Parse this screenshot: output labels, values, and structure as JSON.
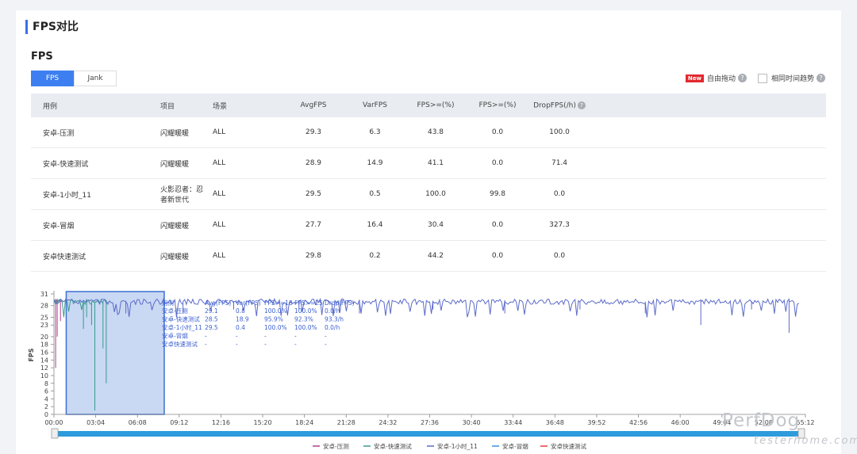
{
  "section_title": "FPS对比",
  "subtitle": "FPS",
  "tabs": [
    {
      "label": "FPS",
      "active": true
    },
    {
      "label": "Jank",
      "active": false
    }
  ],
  "options": {
    "new_badge": "New",
    "free_drag": "自由拖动",
    "same_time_trend": "相同时间趋势",
    "help_glyph": "?"
  },
  "table": {
    "columns": [
      "用例",
      "项目",
      "场景",
      "AvgFPS",
      "VarFPS",
      "FPS>=(%)",
      "FPS>=(%)",
      "DropFPS(/h)"
    ],
    "rows": [
      [
        "安卓-压测",
        "闪耀暖暖",
        "ALL",
        "29.3",
        "6.3",
        "43.8",
        "0.0",
        "100.0"
      ],
      [
        "安卓-快速测试",
        "闪耀暖暖",
        "ALL",
        "28.9",
        "14.9",
        "41.1",
        "0.0",
        "71.4"
      ],
      [
        "安卓-1小时_11",
        "火影忍者：忍者新世代",
        "ALL",
        "29.5",
        "0.5",
        "100.0",
        "99.8",
        "0.0"
      ],
      [
        "安卓-冒烟",
        "闪耀暖暖",
        "ALL",
        "27.7",
        "16.4",
        "30.4",
        "0.0",
        "327.3"
      ],
      [
        "安卓快速测试",
        "闪耀暖暖",
        "ALL",
        "29.8",
        "0.2",
        "44.2",
        "0.0",
        "0.0"
      ]
    ]
  },
  "chart_data": {
    "type": "line",
    "ylabel": "FPS",
    "y_ticks": [
      "0",
      "2",
      "4",
      "6",
      "8",
      "10",
      "12",
      "14",
      "16",
      "18",
      "20",
      "23",
      "25",
      "28",
      "31"
    ],
    "ylim": [
      0,
      31
    ],
    "x_ticks": [
      "00:00",
      "03:04",
      "06:08",
      "09:12",
      "12:16",
      "15:20",
      "18:24",
      "21:28",
      "24:32",
      "27:36",
      "30:40",
      "33:44",
      "36:48",
      "39:52",
      "42:56",
      "46:00",
      "49:04",
      "52:08",
      "55:12"
    ],
    "xlim_minutes": [
      0,
      55.2
    ],
    "grid": "horizontal",
    "selection_minutes": [
      0.9,
      8.1
    ],
    "legend_position": "bottom",
    "series": [
      {
        "name": "安卓-压测",
        "color": "#b0408e",
        "end_minutes": 0.6,
        "base": 29,
        "dips": [
          [
            0.1,
            12
          ],
          [
            0.3,
            20
          ],
          [
            0.45,
            24
          ]
        ]
      },
      {
        "name": "安卓-快速测试",
        "color": "#3a9a8f",
        "end_minutes": 4.0,
        "base": 29,
        "dips": [
          [
            2.2,
            22
          ],
          [
            2.4,
            25
          ],
          [
            2.8,
            23
          ],
          [
            3.0,
            1
          ],
          [
            3.6,
            17
          ],
          [
            3.9,
            8
          ]
        ]
      },
      {
        "name": "安卓-1小时_11",
        "color": "#5c6bc9",
        "end_minutes": 54.8,
        "base": 29,
        "dips": [
          [
            5.3,
            26
          ],
          [
            9.5,
            26
          ],
          [
            13.2,
            27
          ],
          [
            18.0,
            27
          ],
          [
            22.4,
            26
          ],
          [
            27.8,
            27
          ],
          [
            33.1,
            26
          ],
          [
            38.7,
            27
          ],
          [
            43.5,
            26
          ],
          [
            47.5,
            23
          ],
          [
            51.2,
            27
          ],
          [
            54.0,
            21
          ]
        ]
      },
      {
        "name": "安卓-冒烟",
        "color": "#3e8fe0",
        "end_minutes": 0,
        "base": 29,
        "dips": []
      },
      {
        "name": "安卓快速测试",
        "color": "#e23c3c",
        "end_minutes": 0,
        "base": 29,
        "dips": []
      }
    ],
    "tooltip": {
      "headers": [
        "用例",
        "Avg(FPS)",
        "Var(FPS)",
        "FPS>=18",
        "FPS>=25",
        "Drop(FPS)"
      ],
      "rows": [
        [
          "安卓-压测",
          "29.1",
          "0.8",
          "100.0%",
          "100.0%",
          "0.0/h"
        ],
        [
          "安卓-快速测试",
          "28.5",
          "18.9",
          "95.9%",
          "92.3%",
          "93.3/h"
        ],
        [
          "安卓-1小时_11",
          "29.5",
          "0.4",
          "100.0%",
          "100.0%",
          "0.0/h"
        ],
        [
          "安卓-冒烟",
          "-",
          "-",
          "-",
          "-",
          "-"
        ],
        [
          "安卓快速测试",
          "-",
          "-",
          "-",
          "-",
          "-"
        ]
      ]
    }
  },
  "watermark": {
    "brand": "PerfDog",
    "site": "testerhome.com"
  }
}
